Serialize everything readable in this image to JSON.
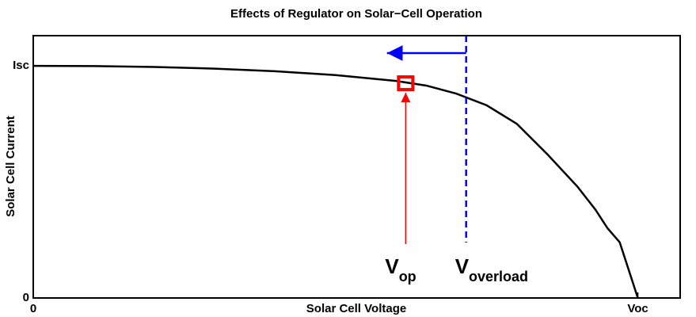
{
  "chart_data": {
    "type": "line",
    "title": "Effects of Regulator on Solar−Cell Operation",
    "xlabel": "Solar Cell Voltage",
    "ylabel": "Solar Cell Current",
    "xlim": [
      0,
      1.07
    ],
    "ylim": [
      0,
      1.13
    ],
    "xticks": [
      0,
      {
        "value": 1,
        "label": "Voc"
      }
    ],
    "yticks": [
      0,
      {
        "value": 1,
        "label": "Isc"
      }
    ],
    "series": [
      {
        "color": "#000000",
        "x": [
          0,
          0.1,
          0.2,
          0.3,
          0.4,
          0.5,
          0.6,
          0.65,
          0.7,
          0.75,
          0.8,
          0.85,
          0.9,
          0.93,
          0.95,
          0.97,
          0.98,
          1.0
        ],
        "values": [
          1,
          0.999,
          0.995,
          0.988,
          0.977,
          0.96,
          0.935,
          0.915,
          0.88,
          0.83,
          0.75,
          0.62,
          0.48,
          0.38,
          0.3,
          0.24,
          0.16,
          0
        ]
      }
    ],
    "operating_point": {
      "x": 0.616,
      "y": 0.925,
      "color": "#ff0000",
      "label": "V",
      "sub": "op"
    },
    "overload": {
      "x": 0.716,
      "color": "#0000ff",
      "label": "V",
      "sub": "overload"
    }
  }
}
